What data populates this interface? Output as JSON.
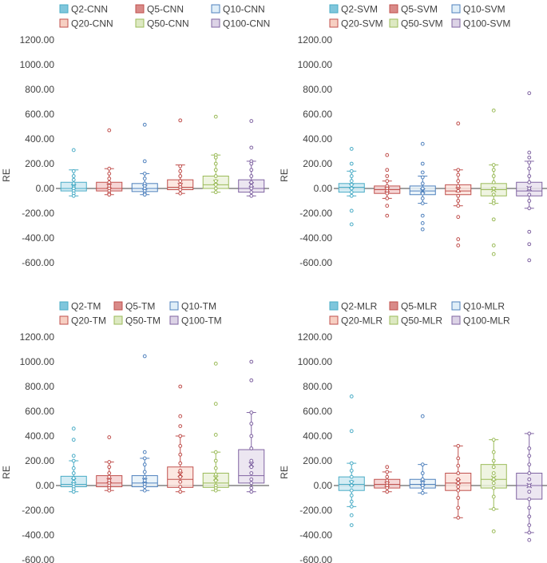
{
  "chart_data": [
    {
      "type": "box",
      "id": "cnn",
      "ylabel": "RE",
      "ylim": [
        -600,
        1200
      ],
      "yticks": [
        1200,
        1000,
        800,
        600,
        400,
        200,
        0,
        -200,
        -400,
        -600
      ],
      "tick_labels": [
        "1200.00",
        "1000.00",
        "800.00",
        "600.00",
        "400.00",
        "200.00",
        "0.00",
        "-200.00",
        "-400.00",
        "-600.00"
      ],
      "legend": [
        "Q2-CNN",
        "Q5-CNN",
        "Q10-CNN",
        "Q20-CNN",
        "Q50-CNN",
        "Q100-CNN"
      ],
      "series": [
        {
          "name": "Q2-CNN",
          "min": -60,
          "q1": -20,
          "median": 0,
          "q3": 50,
          "max": 150,
          "mean": 15,
          "points": [
            310,
            140,
            100,
            70,
            40,
            20,
            10,
            0,
            -20,
            -40,
            -60
          ]
        },
        {
          "name": "Q5-CNN",
          "min": -50,
          "q1": -20,
          "median": 0,
          "q3": 50,
          "max": 160,
          "mean": 20,
          "points": [
            470,
            160,
            120,
            80,
            50,
            20,
            0,
            -20,
            -40,
            -50
          ]
        },
        {
          "name": "Q10-CNN",
          "min": -50,
          "q1": -25,
          "median": 0,
          "q3": 40,
          "max": 120,
          "mean": 10,
          "points": [
            515,
            220,
            120,
            80,
            40,
            20,
            0,
            -20,
            -40,
            -50
          ]
        },
        {
          "name": "Q20-CNN",
          "min": -40,
          "q1": -10,
          "median": 10,
          "q3": 70,
          "max": 190,
          "mean": 25,
          "points": [
            550,
            180,
            140,
            100,
            60,
            30,
            10,
            -10,
            -40
          ]
        },
        {
          "name": "Q50-CNN",
          "min": -30,
          "q1": 0,
          "median": 30,
          "q3": 100,
          "max": 270,
          "mean": 50,
          "points": [
            580,
            270,
            250,
            200,
            150,
            100,
            60,
            30,
            0,
            -30
          ]
        },
        {
          "name": "Q100-CNN",
          "min": -60,
          "q1": -30,
          "median": 0,
          "q3": 70,
          "max": 220,
          "mean": 30,
          "points": [
            545,
            330,
            220,
            200,
            150,
            100,
            50,
            20,
            0,
            -30,
            -60
          ]
        }
      ]
    },
    {
      "type": "box",
      "id": "svm",
      "ylabel": "RE",
      "ylim": [
        -600,
        1200
      ],
      "yticks": [
        1200,
        1000,
        800,
        600,
        400,
        200,
        0,
        -200,
        -400,
        -600
      ],
      "tick_labels": [
        "1200.00",
        "1000.00",
        "800.00",
        "600.00",
        "400.00",
        "200.00",
        "0.00",
        "-200.00",
        "-400.00",
        "-600.00"
      ],
      "legend": [
        "Q2-SVM",
        "Q5-SVM",
        "Q10-SVM",
        "Q20-SVM",
        "Q50-SVM",
        "Q100-SVM"
      ],
      "series": [
        {
          "name": "Q2-SVM",
          "min": -60,
          "q1": -30,
          "median": 10,
          "q3": 40,
          "max": 140,
          "mean": 20,
          "points": [
            320,
            200,
            140,
            100,
            60,
            30,
            0,
            -30,
            -60,
            -180,
            -290
          ]
        },
        {
          "name": "Q5-SVM",
          "min": -80,
          "q1": -40,
          "median": -10,
          "q3": 20,
          "max": 60,
          "mean": -10,
          "points": [
            270,
            150,
            100,
            60,
            20,
            0,
            -20,
            -40,
            -80,
            -140,
            -220
          ]
        },
        {
          "name": "Q10-SVM",
          "min": -120,
          "q1": -50,
          "median": -20,
          "q3": 20,
          "max": 100,
          "mean": -20,
          "points": [
            360,
            200,
            130,
            90,
            40,
            0,
            -40,
            -80,
            -120,
            -220,
            -280,
            -330
          ]
        },
        {
          "name": "Q20-SVM",
          "min": -140,
          "q1": -50,
          "median": -20,
          "q3": 30,
          "max": 150,
          "mean": -10,
          "points": [
            525,
            150,
            110,
            60,
            20,
            -20,
            -60,
            -100,
            -140,
            -230,
            -410,
            -460
          ]
        },
        {
          "name": "Q50-SVM",
          "min": -120,
          "q1": -60,
          "median": -10,
          "q3": 40,
          "max": 190,
          "mean": -10,
          "points": [
            630,
            190,
            150,
            100,
            50,
            0,
            -50,
            -100,
            -120,
            -250,
            -460,
            -530
          ]
        },
        {
          "name": "Q100-SVM",
          "min": -160,
          "q1": -60,
          "median": -20,
          "q3": 50,
          "max": 220,
          "mean": 0,
          "points": [
            770,
            290,
            250,
            210,
            160,
            100,
            50,
            0,
            -50,
            -100,
            -160,
            -350,
            -450,
            -580
          ]
        }
      ]
    },
    {
      "type": "box",
      "id": "tm",
      "ylabel": "RE",
      "ylim": [
        -600,
        1200
      ],
      "yticks": [
        1200,
        1000,
        800,
        600,
        400,
        200,
        0,
        -200,
        -400,
        -600
      ],
      "tick_labels": [
        "1200.00",
        "1000.00",
        "800.00",
        "600.00",
        "400.00",
        "200.00",
        "0.00",
        "-200.00",
        "-400.00",
        "-600.00"
      ],
      "legend": [
        "Q2-TM",
        "Q5-TM",
        "Q10-TM",
        "Q20-TM",
        "Q50-TM",
        "Q100-TM"
      ],
      "series": [
        {
          "name": "Q2-TM",
          "min": -50,
          "q1": -10,
          "median": 10,
          "q3": 75,
          "max": 200,
          "mean": 40,
          "points": [
            460,
            370,
            240,
            200,
            140,
            100,
            60,
            30,
            10,
            -10,
            -30,
            -50
          ]
        },
        {
          "name": "Q5-TM",
          "min": -40,
          "q1": -10,
          "median": 20,
          "q3": 80,
          "max": 190,
          "mean": 40,
          "points": [
            390,
            190,
            150,
            100,
            70,
            40,
            20,
            0,
            -20,
            -40
          ]
        },
        {
          "name": "Q10-TM",
          "min": -40,
          "q1": -10,
          "median": 20,
          "q3": 80,
          "max": 220,
          "mean": 40,
          "points": [
            1045,
            270,
            220,
            170,
            110,
            70,
            40,
            10,
            -10,
            -40
          ]
        },
        {
          "name": "Q20-TM",
          "min": -50,
          "q1": -15,
          "median": 50,
          "q3": 150,
          "max": 400,
          "mean": 90,
          "points": [
            800,
            560,
            480,
            400,
            320,
            250,
            180,
            120,
            70,
            30,
            -10,
            -50
          ]
        },
        {
          "name": "Q50-TM",
          "min": -40,
          "q1": -15,
          "median": 20,
          "q3": 100,
          "max": 270,
          "mean": 60,
          "points": [
            985,
            660,
            410,
            270,
            200,
            140,
            90,
            40,
            0,
            -20,
            -40
          ]
        },
        {
          "name": "Q100-TM",
          "min": -50,
          "q1": 20,
          "median": 80,
          "q3": 290,
          "max": 590,
          "mean": 170,
          "points": [
            1000,
            850,
            590,
            500,
            400,
            300,
            200,
            150,
            100,
            50,
            20,
            -20,
            -50
          ]
        }
      ]
    },
    {
      "type": "box",
      "id": "mlr",
      "ylabel": "RE",
      "ylim": [
        -600,
        1200
      ],
      "yticks": [
        1200,
        1000,
        800,
        600,
        400,
        200,
        0,
        -200,
        -400,
        -600
      ],
      "tick_labels": [
        "1200.00",
        "1000.00",
        "800.00",
        "600.00",
        "400.00",
        "200.00",
        "0.00",
        "-200.00",
        "-400.00",
        "-600.00"
      ],
      "legend": [
        "Q2-MLR",
        "Q5-MLR",
        "Q10-MLR",
        "Q20-MLR",
        "Q50-MLR",
        "Q100-MLR"
      ],
      "series": [
        {
          "name": "Q2-MLR",
          "min": -170,
          "q1": -40,
          "median": 10,
          "q3": 70,
          "max": 180,
          "mean": 20,
          "points": [
            720,
            440,
            180,
            120,
            70,
            30,
            0,
            -40,
            -80,
            -130,
            -170,
            -240,
            -320
          ]
        },
        {
          "name": "Q5-MLR",
          "min": -50,
          "q1": -20,
          "median": 10,
          "q3": 50,
          "max": 110,
          "mean": 10,
          "points": [
            150,
            110,
            70,
            40,
            20,
            0,
            -20,
            -50
          ]
        },
        {
          "name": "Q10-MLR",
          "min": -60,
          "q1": -20,
          "median": 10,
          "q3": 50,
          "max": 170,
          "mean": 20,
          "points": [
            560,
            170,
            100,
            50,
            20,
            0,
            -20,
            -60
          ]
        },
        {
          "name": "Q20-MLR",
          "min": -260,
          "q1": -40,
          "median": 20,
          "q3": 100,
          "max": 320,
          "mean": 30,
          "points": [
            320,
            220,
            160,
            100,
            50,
            20,
            -10,
            -40,
            -100,
            -180,
            -260
          ]
        },
        {
          "name": "Q50-MLR",
          "min": -190,
          "q1": -20,
          "median": 50,
          "q3": 170,
          "max": 370,
          "mean": 60,
          "points": [
            370,
            270,
            200,
            150,
            100,
            50,
            20,
            -20,
            -90,
            -190,
            -370
          ]
        },
        {
          "name": "Q100-MLR",
          "min": -380,
          "q1": -110,
          "median": 0,
          "q3": 100,
          "max": 420,
          "mean": 0,
          "points": [
            420,
            300,
            240,
            170,
            100,
            50,
            0,
            -50,
            -110,
            -180,
            -250,
            -320,
            -380,
            -440
          ]
        }
      ]
    }
  ],
  "colors": {
    "fills": [
      "#cde9f2",
      "#f4cfcf",
      "#e8f2f9",
      "#fbe3dc",
      "#ecf2dc",
      "#e9e2ef"
    ],
    "strokes": [
      "#4aacc6",
      "#c0504d",
      "#4f81bd",
      "#c0504d",
      "#9bbb59",
      "#8064a2"
    ],
    "legend_fills": [
      "#7fc6dc",
      "#d98a88",
      "#dfeef8",
      "#f7cfc2",
      "#dde9c2",
      "#dcd3e6"
    ],
    "zero_line": "#404040",
    "axis": "#bfbfbf"
  }
}
